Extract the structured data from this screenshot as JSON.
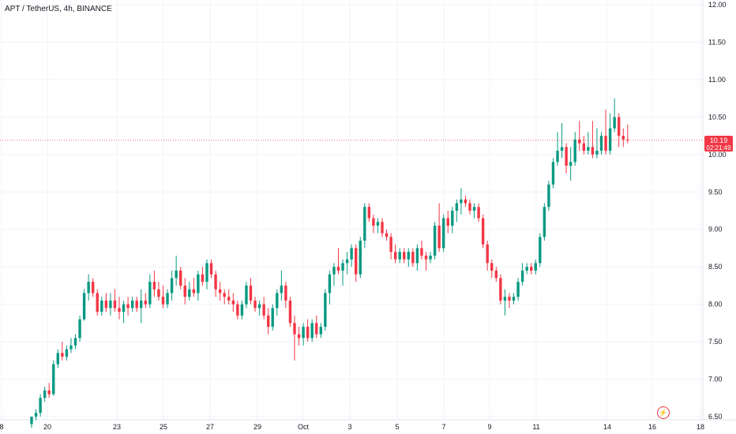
{
  "header": {
    "title": "APT / TetherUS, 4h, BINANCE"
  },
  "price_tag": {
    "value": "10.19",
    "countdown": "02:21:49"
  },
  "chart_data": {
    "type": "candlestick",
    "title": "APT / TetherUS, 4h, BINANCE",
    "ylim": [
      6.5,
      12.0
    ],
    "y_ticks": [
      "12.00",
      "11.50",
      "11.00",
      "10.50",
      "10.00",
      "9.50",
      "9.00",
      "8.50",
      "8.00",
      "7.50",
      "7.00",
      "6.50"
    ],
    "x_ticks": [
      "8",
      "20",
      "23",
      "25",
      "27",
      "29",
      "Oct",
      "3",
      "5",
      "7",
      "9",
      "11",
      "14",
      "16",
      "18"
    ],
    "last_price": 10.19,
    "grid": true,
    "colors": {
      "up": "#089981",
      "down": "#f23645",
      "last_line": "#f23645"
    },
    "candles": [
      [
        6.4,
        6.5,
        6.35,
        6.5
      ],
      [
        6.5,
        6.6,
        6.45,
        6.55
      ],
      [
        6.55,
        6.8,
        6.5,
        6.75
      ],
      [
        6.75,
        6.9,
        6.7,
        6.85
      ],
      [
        6.85,
        6.95,
        6.75,
        6.8
      ],
      [
        6.8,
        7.25,
        6.78,
        7.2
      ],
      [
        7.2,
        7.4,
        7.15,
        7.35
      ],
      [
        7.35,
        7.5,
        7.25,
        7.3
      ],
      [
        7.3,
        7.45,
        7.25,
        7.4
      ],
      [
        7.4,
        7.55,
        7.35,
        7.45
      ],
      [
        7.45,
        7.6,
        7.4,
        7.55
      ],
      [
        7.55,
        7.85,
        7.5,
        7.8
      ],
      [
        7.8,
        8.2,
        7.78,
        8.15
      ],
      [
        8.15,
        8.4,
        8.05,
        8.3
      ],
      [
        8.3,
        8.35,
        8.1,
        8.15
      ],
      [
        8.15,
        8.2,
        7.85,
        7.9
      ],
      [
        7.9,
        8.1,
        7.85,
        8.05
      ],
      [
        8.05,
        8.15,
        7.9,
        7.95
      ],
      [
        7.95,
        8.15,
        7.85,
        8.05
      ],
      [
        8.05,
        8.2,
        7.9,
        7.95
      ],
      [
        7.95,
        8.1,
        7.8,
        7.9
      ],
      [
        7.9,
        8.05,
        7.75,
        8.0
      ],
      [
        8.0,
        8.1,
        7.85,
        7.95
      ],
      [
        7.95,
        8.1,
        7.9,
        8.05
      ],
      [
        8.05,
        8.1,
        7.9,
        7.95
      ],
      [
        7.95,
        8.2,
        7.75,
        8.05
      ],
      [
        8.05,
        8.15,
        7.95,
        8.0
      ],
      [
        8.0,
        8.4,
        7.95,
        8.3
      ],
      [
        8.3,
        8.45,
        8.1,
        8.2
      ],
      [
        8.2,
        8.3,
        8.05,
        8.1
      ],
      [
        8.1,
        8.25,
        7.95,
        8.0
      ],
      [
        8.0,
        8.2,
        7.95,
        8.15
      ],
      [
        8.15,
        8.45,
        8.05,
        8.35
      ],
      [
        8.35,
        8.65,
        8.25,
        8.45
      ],
      [
        8.45,
        8.5,
        8.2,
        8.25
      ],
      [
        8.25,
        8.35,
        8.0,
        8.1
      ],
      [
        8.1,
        8.3,
        8.05,
        8.2
      ],
      [
        8.2,
        8.35,
        8.1,
        8.15
      ],
      [
        8.15,
        8.45,
        8.05,
        8.4
      ],
      [
        8.4,
        8.5,
        8.25,
        8.3
      ],
      [
        8.3,
        8.6,
        8.2,
        8.55
      ],
      [
        8.55,
        8.6,
        8.35,
        8.4
      ],
      [
        8.4,
        8.45,
        8.1,
        8.2
      ],
      [
        8.2,
        8.3,
        8.05,
        8.15
      ],
      [
        8.15,
        8.2,
        8.0,
        8.1
      ],
      [
        8.1,
        8.2,
        8.0,
        8.05
      ],
      [
        8.05,
        8.15,
        7.9,
        8.0
      ],
      [
        8.0,
        8.05,
        7.8,
        7.85
      ],
      [
        7.85,
        8.05,
        7.8,
        8.0
      ],
      [
        8.0,
        8.3,
        7.95,
        8.25
      ],
      [
        8.25,
        8.35,
        8.0,
        8.05
      ],
      [
        8.05,
        8.1,
        7.9,
        7.95
      ],
      [
        7.95,
        8.05,
        7.85,
        8.0
      ],
      [
        8.0,
        8.1,
        7.8,
        7.85
      ],
      [
        7.85,
        7.95,
        7.6,
        7.7
      ],
      [
        7.7,
        8.0,
        7.65,
        7.95
      ],
      [
        7.95,
        8.2,
        7.85,
        8.15
      ],
      [
        8.15,
        8.45,
        8.05,
        8.25
      ],
      [
        8.25,
        8.3,
        7.95,
        8.05
      ],
      [
        8.05,
        8.1,
        7.7,
        7.75
      ],
      [
        7.75,
        7.85,
        7.25,
        7.6
      ],
      [
        7.6,
        7.7,
        7.45,
        7.55
      ],
      [
        7.55,
        7.75,
        7.45,
        7.7
      ],
      [
        7.7,
        7.8,
        7.5,
        7.55
      ],
      [
        7.55,
        7.8,
        7.5,
        7.75
      ],
      [
        7.75,
        7.85,
        7.55,
        7.6
      ],
      [
        7.6,
        7.75,
        7.55,
        7.7
      ],
      [
        7.7,
        8.2,
        7.65,
        8.15
      ],
      [
        8.15,
        8.45,
        8.0,
        8.4
      ],
      [
        8.4,
        8.55,
        8.25,
        8.5
      ],
      [
        8.5,
        8.75,
        8.4,
        8.45
      ],
      [
        8.45,
        8.6,
        8.25,
        8.55
      ],
      [
        8.55,
        8.7,
        8.4,
        8.6
      ],
      [
        8.6,
        8.8,
        8.5,
        8.75
      ],
      [
        8.75,
        8.8,
        8.3,
        8.4
      ],
      [
        8.4,
        8.9,
        8.35,
        8.85
      ],
      [
        8.85,
        9.35,
        8.75,
        9.3
      ],
      [
        9.3,
        9.35,
        9.1,
        9.15
      ],
      [
        9.15,
        9.2,
        8.95,
        9.05
      ],
      [
        9.05,
        9.15,
        8.95,
        9.1
      ],
      [
        9.1,
        9.15,
        8.9,
        8.95
      ],
      [
        8.95,
        9.0,
        8.85,
        8.9
      ],
      [
        8.9,
        8.95,
        8.6,
        8.7
      ],
      [
        8.7,
        8.8,
        8.55,
        8.6
      ],
      [
        8.6,
        8.75,
        8.55,
        8.7
      ],
      [
        8.7,
        8.75,
        8.55,
        8.6
      ],
      [
        8.6,
        8.75,
        8.5,
        8.7
      ],
      [
        8.7,
        8.75,
        8.5,
        8.55
      ],
      [
        8.55,
        8.8,
        8.45,
        8.75
      ],
      [
        8.75,
        8.85,
        8.6,
        8.65
      ],
      [
        8.65,
        8.7,
        8.45,
        8.6
      ],
      [
        8.6,
        8.7,
        8.55,
        8.65
      ],
      [
        8.65,
        9.1,
        8.6,
        9.05
      ],
      [
        9.05,
        9.35,
        8.7,
        8.75
      ],
      [
        8.75,
        9.2,
        8.7,
        9.15
      ],
      [
        9.15,
        9.25,
        8.95,
        9.05
      ],
      [
        9.05,
        9.3,
        8.95,
        9.25
      ],
      [
        9.25,
        9.4,
        9.1,
        9.35
      ],
      [
        9.35,
        9.55,
        9.2,
        9.4
      ],
      [
        9.4,
        9.45,
        9.3,
        9.35
      ],
      [
        9.35,
        9.4,
        9.2,
        9.25
      ],
      [
        9.25,
        9.35,
        9.15,
        9.3
      ],
      [
        9.3,
        9.35,
        9.1,
        9.15
      ],
      [
        9.15,
        9.2,
        8.75,
        8.8
      ],
      [
        8.8,
        8.85,
        8.45,
        8.55
      ],
      [
        8.55,
        8.6,
        8.35,
        8.45
      ],
      [
        8.45,
        8.5,
        8.3,
        8.35
      ],
      [
        8.35,
        8.4,
        8.0,
        8.05
      ],
      [
        8.05,
        8.2,
        7.85,
        8.1
      ],
      [
        8.1,
        8.15,
        7.95,
        8.05
      ],
      [
        8.05,
        8.15,
        8.0,
        8.1
      ],
      [
        8.1,
        8.35,
        8.05,
        8.3
      ],
      [
        8.3,
        8.55,
        8.25,
        8.45
      ],
      [
        8.45,
        8.55,
        8.4,
        8.5
      ],
      [
        8.5,
        8.55,
        8.4,
        8.45
      ],
      [
        8.45,
        8.6,
        8.4,
        8.55
      ],
      [
        8.55,
        8.95,
        8.5,
        8.9
      ],
      [
        8.9,
        9.35,
        8.85,
        9.3
      ],
      [
        9.3,
        9.65,
        9.25,
        9.6
      ],
      [
        9.6,
        9.95,
        9.55,
        9.9
      ],
      [
        9.9,
        10.3,
        9.85,
        10.05
      ],
      [
        10.05,
        10.42,
        9.95,
        10.1
      ],
      [
        10.1,
        10.15,
        9.75,
        9.85
      ],
      [
        9.85,
        10.1,
        9.65,
        9.9
      ],
      [
        9.9,
        10.3,
        9.85,
        10.2
      ],
      [
        10.2,
        10.45,
        10.05,
        10.15
      ],
      [
        10.15,
        10.25,
        10.0,
        10.05
      ],
      [
        10.05,
        10.3,
        10.0,
        10.1
      ],
      [
        10.1,
        10.45,
        9.95,
        10.0
      ],
      [
        10.0,
        10.35,
        9.95,
        10.05
      ],
      [
        10.05,
        10.3,
        10.0,
        10.25
      ],
      [
        10.25,
        10.6,
        10.0,
        10.05
      ],
      [
        10.05,
        10.55,
        10.0,
        10.35
      ],
      [
        10.35,
        10.75,
        10.3,
        10.5
      ],
      [
        10.5,
        10.55,
        10.1,
        10.25
      ],
      [
        10.25,
        10.35,
        10.1,
        10.2
      ],
      [
        10.2,
        10.4,
        10.15,
        10.19
      ]
    ]
  }
}
